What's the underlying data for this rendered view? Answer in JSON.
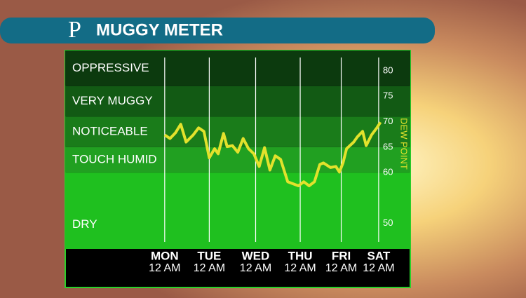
{
  "logo": "P",
  "chart_data": {
    "type": "line",
    "title": "MUGGY METER",
    "y_label": "DEW POINT",
    "xlim": [
      -55,
      122
    ],
    "xticks": [
      {
        "value": 0,
        "label": "MON",
        "sublabel": "12 AM"
      },
      {
        "value": 25,
        "label": "TUE",
        "sublabel": "12 AM"
      },
      {
        "value": 51,
        "label": "WED",
        "sublabel": "12 AM"
      },
      {
        "value": 76,
        "label": "THU",
        "sublabel": "12 AM"
      },
      {
        "value": 99,
        "label": "FRI",
        "sublabel": "12 AM"
      },
      {
        "value": 120,
        "label": "SAT",
        "sublabel": "12 AM"
      }
    ],
    "ylim": [
      45,
      84
    ],
    "yticks": [
      50,
      60,
      65,
      70,
      75,
      80
    ],
    "bands": [
      {
        "name": "DRY",
        "from": 45,
        "to": 60,
        "color": "#1fc01f"
      },
      {
        "name": "TOUCH HUMID",
        "from": 60,
        "to": 65,
        "color": "#21a021"
      },
      {
        "name": "NOTICEABLE",
        "from": 65,
        "to": 71,
        "color": "#1a7c1a"
      },
      {
        "name": "VERY MUGGY",
        "from": 71,
        "to": 77,
        "color": "#125a14"
      },
      {
        "name": "OPPRESSIVE",
        "from": 77,
        "to": 84,
        "color": "#0c3a0e"
      }
    ],
    "grid": true,
    "x": [
      0,
      3,
      6,
      9,
      12,
      16,
      19,
      22,
      25,
      28,
      30,
      33,
      35,
      38,
      41,
      44,
      47,
      50,
      53,
      56,
      59,
      62,
      65,
      69,
      72,
      75,
      78,
      81,
      84,
      87,
      89,
      93,
      96,
      98,
      100,
      102,
      106,
      108,
      111,
      113,
      116,
      119,
      121
    ],
    "series": [
      {
        "name": "DEW POINT",
        "color": "#e2e22c",
        "values": [
          67.4,
          66.7,
          67.8,
          69.5,
          66.0,
          67.4,
          68.8,
          68.1,
          62.9,
          64.7,
          63.7,
          67.7,
          65.1,
          65.3,
          64.0,
          66.7,
          64.7,
          63.7,
          61.2,
          64.9,
          60.5,
          63.3,
          62.6,
          58.2,
          57.8,
          57.4,
          58.2,
          57.4,
          58.2,
          61.6,
          61.9,
          61.0,
          61.2,
          60.1,
          61.9,
          64.7,
          66.0,
          67.0,
          68.1,
          65.3,
          67.4,
          68.8,
          69.9
        ]
      }
    ]
  }
}
